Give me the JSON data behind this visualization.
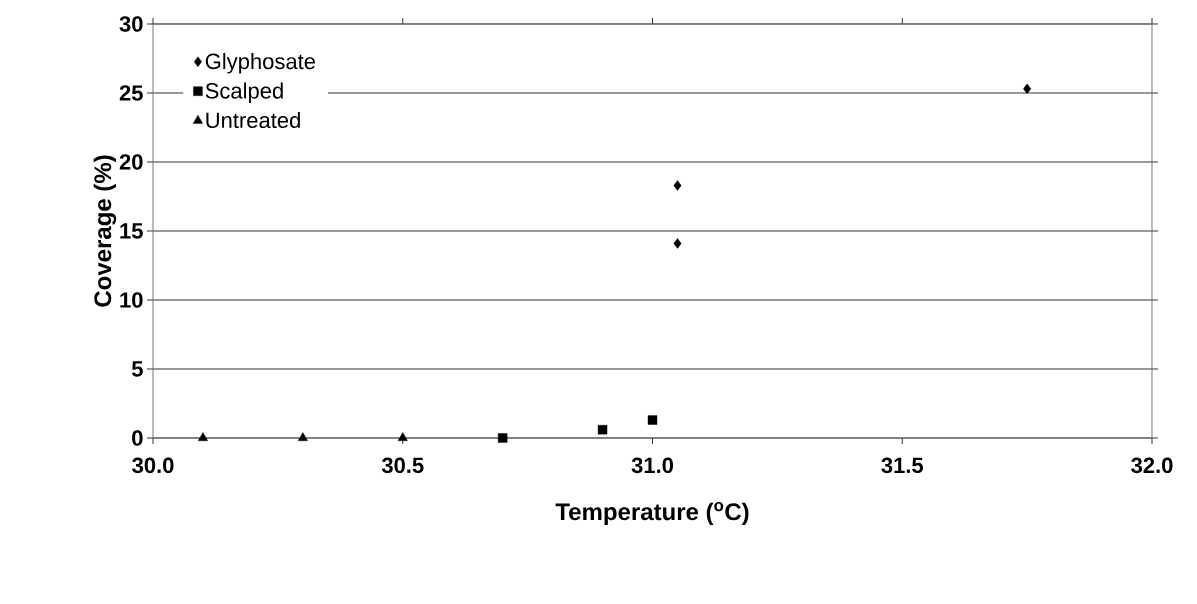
{
  "chart_data": {
    "type": "scatter",
    "xlabel": "Temperature ($^{o}$C)",
    "ylabel": "Coverage (%)",
    "xlim": [
      30.0,
      32.0
    ],
    "xticks": [
      {
        "value": 30.0,
        "label": "30.0"
      },
      {
        "value": 30.5,
        "label": "30.5"
      },
      {
        "value": 31.0,
        "label": "31.0"
      },
      {
        "value": 31.5,
        "label": "31.5"
      },
      {
        "value": 32.0,
        "label": "32.0"
      }
    ],
    "ylim": [
      0,
      30
    ],
    "yticks": [
      0,
      5,
      10,
      15,
      20,
      25,
      30
    ],
    "grid": "y",
    "legend": "top left",
    "series": [
      {
        "name": "Glyphosate",
        "color": "#000000",
        "marker": "diamond",
        "x": [
          31.05,
          31.05,
          31.75
        ],
        "values": [
          18.3,
          14.1,
          25.3
        ]
      },
      {
        "name": "Scalped",
        "color": "#000000",
        "marker": "square",
        "x": [
          30.7,
          30.9,
          31.0
        ],
        "values": [
          0.0,
          0.6,
          1.3
        ]
      },
      {
        "name": "Untreated",
        "color": "#000000",
        "marker": "triangle",
        "x": [
          30.1,
          30.3,
          30.5
        ],
        "values": [
          0.0,
          0.0,
          0.0
        ]
      }
    ]
  }
}
